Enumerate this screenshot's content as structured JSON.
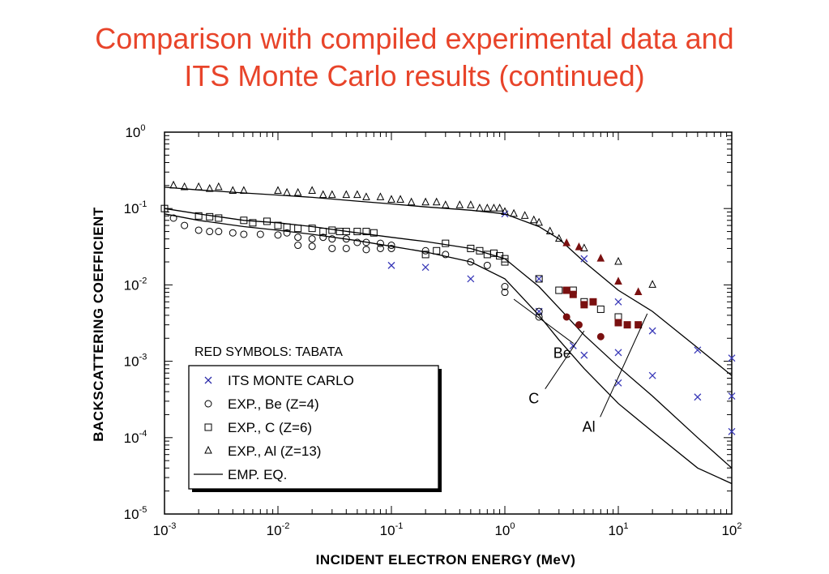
{
  "title": {
    "line1": "Comparison with compiled experimental data and",
    "line2": "ITS Monte Carlo results (continued)"
  },
  "chart_data": {
    "type": "scatter",
    "xscale": "log",
    "yscale": "log",
    "xlim": [
      0.001,
      100
    ],
    "ylim": [
      1e-05,
      1
    ],
    "xlabel": "INCIDENT ELECTRON ENERGY (MeV)",
    "ylabel": "BACKSCATTERING COEFFICIENT",
    "x_ticks": [
      {
        "base": "10",
        "exp": "-3",
        "value": 0.001
      },
      {
        "base": "10",
        "exp": "-2",
        "value": 0.01
      },
      {
        "base": "10",
        "exp": "-1",
        "value": 0.1
      },
      {
        "base": "10",
        "exp": "0",
        "value": 1
      },
      {
        "base": "10",
        "exp": "1",
        "value": 10
      },
      {
        "base": "10",
        "exp": "2",
        "value": 100
      }
    ],
    "y_ticks": [
      {
        "base": "10",
        "exp": "0",
        "value": 1
      },
      {
        "base": "10",
        "exp": "-1",
        "value": 0.1
      },
      {
        "base": "10",
        "exp": "-2",
        "value": 0.01
      },
      {
        "base": "10",
        "exp": "-3",
        "value": 0.001
      },
      {
        "base": "10",
        "exp": "-4",
        "value": 0.0001
      },
      {
        "base": "10",
        "exp": "-5",
        "value": 1e-05
      }
    ],
    "note": "RED SYMBOLS: TABATA",
    "legend": [
      {
        "marker": "x",
        "label": "ITS MONTE CARLO",
        "color": "#2a2aa8"
      },
      {
        "marker": "circle",
        "label": "EXP., Be (Z=4)",
        "color": "#000000"
      },
      {
        "marker": "square",
        "label": "EXP., C  (Z=6)",
        "color": "#000000"
      },
      {
        "marker": "triangle",
        "label": "EXP., Al (Z=13)",
        "color": "#000000"
      },
      {
        "marker": "line",
        "label": "EMP. EQ.",
        "color": "#000000"
      }
    ],
    "annotations": [
      {
        "text": "Be",
        "x": 3.2,
        "y": 0.0011,
        "px": 1.2,
        "py": 0.0065
      },
      {
        "text": "C",
        "x": 1.8,
        "y": 0.00028,
        "px": 5.0,
        "py": 0.0025
      },
      {
        "text": "Al",
        "x": 5.5,
        "y": 0.00012,
        "px": 18.0,
        "py": 0.0042
      }
    ],
    "colors": {
      "its": "#3a3ab8",
      "tabata": "#7a1010",
      "curve": "#000000"
    },
    "series": [
      {
        "name": "EMP. EQ. Al",
        "kind": "curve",
        "x": [
          0.001,
          0.002,
          0.005,
          0.01,
          0.02,
          0.05,
          0.1,
          0.2,
          0.5,
          1,
          2,
          3,
          5,
          10,
          20,
          50,
          100
        ],
        "y": [
          0.19,
          0.175,
          0.16,
          0.15,
          0.14,
          0.125,
          0.115,
          0.105,
          0.095,
          0.085,
          0.058,
          0.04,
          0.02,
          0.0085,
          0.0045,
          0.0015,
          0.00065
        ]
      },
      {
        "name": "EMP. EQ. C",
        "kind": "curve",
        "x": [
          0.001,
          0.002,
          0.005,
          0.01,
          0.02,
          0.05,
          0.1,
          0.2,
          0.5,
          1,
          2,
          3,
          5,
          10,
          20,
          50,
          100
        ],
        "y": [
          0.1,
          0.085,
          0.07,
          0.065,
          0.058,
          0.048,
          0.042,
          0.037,
          0.03,
          0.022,
          0.0095,
          0.005,
          0.0022,
          0.00085,
          0.00035,
          0.0001,
          4e-05
        ]
      },
      {
        "name": "EMP. EQ. Be",
        "kind": "curve",
        "x": [
          0.001,
          0.002,
          0.005,
          0.01,
          0.02,
          0.05,
          0.1,
          0.2,
          0.5,
          1,
          2,
          3,
          5,
          10,
          20,
          50,
          100
        ],
        "y": [
          0.085,
          0.07,
          0.058,
          0.052,
          0.046,
          0.038,
          0.032,
          0.027,
          0.02,
          0.012,
          0.004,
          0.0019,
          0.0008,
          0.00028,
          0.00012,
          4e-05,
          2.5e-05
        ]
      },
      {
        "name": "ITS MONTE CARLO",
        "kind": "x",
        "x": [
          0.1,
          0.2,
          0.5,
          1,
          2,
          2,
          4,
          5,
          5,
          10,
          10,
          10,
          20,
          20,
          50,
          50,
          100,
          100,
          100
        ],
        "y": [
          0.018,
          0.017,
          0.012,
          0.085,
          0.012,
          0.0045,
          0.0016,
          0.022,
          0.0012,
          0.006,
          0.0013,
          0.00052,
          0.0025,
          0.00065,
          0.0014,
          0.00034,
          0.0011,
          0.00035,
          0.00012
        ]
      },
      {
        "name": "EXP., Be (Z=4)",
        "kind": "circle",
        "x": [
          0.0012,
          0.0015,
          0.002,
          0.0025,
          0.003,
          0.004,
          0.005,
          0.007,
          0.01,
          0.012,
          0.015,
          0.02,
          0.025,
          0.03,
          0.04,
          0.05,
          0.06,
          0.08,
          0.1,
          0.015,
          0.02,
          0.03,
          0.04,
          0.06,
          0.08,
          0.1,
          0.2,
          0.3,
          0.5,
          0.7,
          1,
          1,
          2,
          2
        ],
        "y": [
          0.075,
          0.06,
          0.052,
          0.05,
          0.05,
          0.048,
          0.046,
          0.046,
          0.045,
          0.048,
          0.042,
          0.04,
          0.042,
          0.04,
          0.04,
          0.036,
          0.036,
          0.035,
          0.033,
          0.033,
          0.032,
          0.03,
          0.03,
          0.029,
          0.03,
          0.03,
          0.028,
          0.025,
          0.02,
          0.018,
          0.0095,
          0.008,
          0.0045,
          0.0038
        ]
      },
      {
        "name": "EXP., C  (Z=6)",
        "kind": "square",
        "x": [
          0.001,
          0.002,
          0.0025,
          0.003,
          0.005,
          0.006,
          0.008,
          0.01,
          0.012,
          0.015,
          0.02,
          0.025,
          0.03,
          0.035,
          0.04,
          0.05,
          0.06,
          0.07,
          0.2,
          0.25,
          0.3,
          0.5,
          0.6,
          0.7,
          0.8,
          0.9,
          1,
          1,
          2,
          3,
          4,
          5,
          7,
          10
        ],
        "y": [
          0.1,
          0.08,
          0.078,
          0.075,
          0.07,
          0.065,
          0.068,
          0.06,
          0.057,
          0.055,
          0.055,
          0.05,
          0.052,
          0.05,
          0.05,
          0.05,
          0.05,
          0.048,
          0.025,
          0.028,
          0.035,
          0.03,
          0.028,
          0.025,
          0.026,
          0.024,
          0.022,
          0.02,
          0.012,
          0.0085,
          0.0085,
          0.006,
          0.0048,
          0.0038
        ]
      },
      {
        "name": "EXP., Al (Z=13)",
        "kind": "triangle",
        "x": [
          0.0012,
          0.0015,
          0.002,
          0.0025,
          0.003,
          0.004,
          0.005,
          0.01,
          0.012,
          0.015,
          0.02,
          0.025,
          0.03,
          0.04,
          0.05,
          0.06,
          0.08,
          0.1,
          0.12,
          0.15,
          0.2,
          0.25,
          0.3,
          0.4,
          0.5,
          0.6,
          0.7,
          0.8,
          0.9,
          1,
          1.2,
          1.5,
          1.8,
          2,
          2.5,
          3,
          5,
          10,
          20
        ],
        "y": [
          0.2,
          0.19,
          0.19,
          0.18,
          0.19,
          0.17,
          0.17,
          0.17,
          0.16,
          0.16,
          0.17,
          0.15,
          0.15,
          0.15,
          0.15,
          0.14,
          0.14,
          0.13,
          0.13,
          0.12,
          0.12,
          0.12,
          0.11,
          0.11,
          0.11,
          0.1,
          0.1,
          0.1,
          0.1,
          0.09,
          0.085,
          0.08,
          0.07,
          0.065,
          0.05,
          0.04,
          0.03,
          0.02,
          0.01
        ]
      },
      {
        "name": "TABATA C",
        "kind": "filled-square",
        "x": [
          3.5,
          4,
          5,
          6,
          10,
          12,
          15
        ],
        "y": [
          0.0085,
          0.0075,
          0.0055,
          0.006,
          0.0032,
          0.003,
          0.003
        ]
      },
      {
        "name": "TABATA Be",
        "kind": "filled-circle",
        "x": [
          3.5,
          4.5,
          7
        ],
        "y": [
          0.0038,
          0.003,
          0.0021
        ]
      },
      {
        "name": "TABATA Al",
        "kind": "filled-triangle",
        "x": [
          3.5,
          4.5,
          7,
          10,
          15
        ],
        "y": [
          0.035,
          0.031,
          0.022,
          0.011,
          0.008
        ]
      }
    ]
  }
}
